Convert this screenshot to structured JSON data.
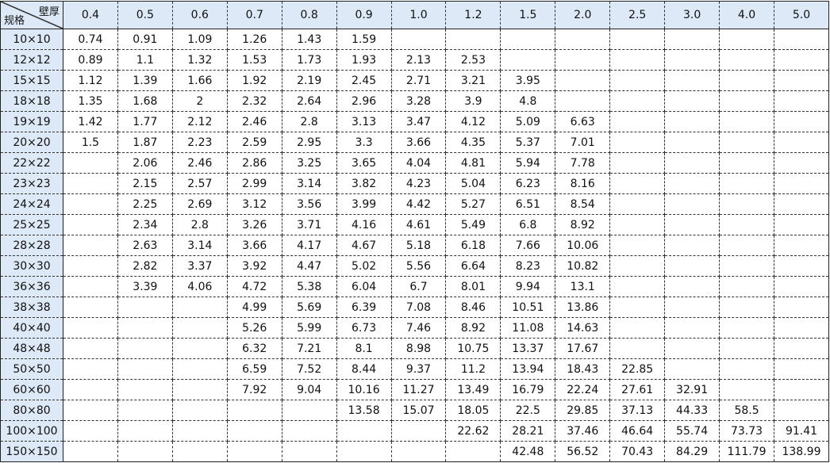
{
  "corner": {
    "top_label": "壁厚",
    "bottom_label": "规格"
  },
  "columns": [
    "0.4",
    "0.5",
    "0.6",
    "0.7",
    "0.8",
    "0.9",
    "1.0",
    "1.2",
    "1.5",
    "2.0",
    "2.5",
    "3.0",
    "4.0",
    "5.0"
  ],
  "rows": [
    {
      "spec": "10×10",
      "values": [
        "0.74",
        "0.91",
        "1.09",
        "1.26",
        "1.43",
        "1.59",
        "",
        "",
        "",
        "",
        "",
        "",
        "",
        ""
      ]
    },
    {
      "spec": "12×12",
      "values": [
        "0.89",
        "1.1",
        "1.32",
        "1.53",
        "1.73",
        "1.93",
        "2.13",
        "2.53",
        "",
        "",
        "",
        "",
        "",
        ""
      ]
    },
    {
      "spec": "15×15",
      "values": [
        "1.12",
        "1.39",
        "1.66",
        "1.92",
        "2.19",
        "2.45",
        "2.71",
        "3.21",
        "3.95",
        "",
        "",
        "",
        "",
        ""
      ]
    },
    {
      "spec": "18×18",
      "values": [
        "1.35",
        "1.68",
        "2",
        "2.32",
        "2.64",
        "2.96",
        "3.28",
        "3.9",
        "4.8",
        "",
        "",
        "",
        "",
        ""
      ]
    },
    {
      "spec": "19×19",
      "values": [
        "1.42",
        "1.77",
        "2.12",
        "2.46",
        "2.8",
        "3.13",
        "3.47",
        "4.12",
        "5.09",
        "6.63",
        "",
        "",
        "",
        ""
      ]
    },
    {
      "spec": "20×20",
      "values": [
        "1.5",
        "1.87",
        "2.23",
        "2.59",
        "2.95",
        "3.3",
        "3.66",
        "4.35",
        "5.37",
        "7.01",
        "",
        "",
        "",
        ""
      ]
    },
    {
      "spec": "22×22",
      "values": [
        "",
        "2.06",
        "2.46",
        "2.86",
        "3.25",
        "3.65",
        "4.04",
        "4.81",
        "5.94",
        "7.78",
        "",
        "",
        "",
        ""
      ]
    },
    {
      "spec": "23×23",
      "values": [
        "",
        "2.15",
        "2.57",
        "2.99",
        "3.14",
        "3.82",
        "4.23",
        "5.04",
        "6.23",
        "8.16",
        "",
        "",
        "",
        ""
      ]
    },
    {
      "spec": "24×24",
      "values": [
        "",
        "2.25",
        "2.69",
        "3.12",
        "3.56",
        "3.99",
        "4.42",
        "5.27",
        "6.51",
        "8.54",
        "",
        "",
        "",
        ""
      ]
    },
    {
      "spec": "25×25",
      "values": [
        "",
        "2.34",
        "2.8",
        "3.26",
        "3.71",
        "4.16",
        "4.61",
        "5.49",
        "6.8",
        "8.92",
        "",
        "",
        "",
        ""
      ]
    },
    {
      "spec": "28×28",
      "values": [
        "",
        "2.63",
        "3.14",
        "3.66",
        "4.17",
        "4.67",
        "5.18",
        "6.18",
        "7.66",
        "10.06",
        "",
        "",
        "",
        ""
      ]
    },
    {
      "spec": "30×30",
      "values": [
        "",
        "2.82",
        "3.37",
        "3.92",
        "4.47",
        "5.02",
        "5.56",
        "6.64",
        "8.23",
        "10.82",
        "",
        "",
        "",
        ""
      ]
    },
    {
      "spec": "36×36",
      "values": [
        "",
        "3.39",
        "4.06",
        "4.72",
        "5.38",
        "6.04",
        "6.7",
        "8.01",
        "9.94",
        "13.1",
        "",
        "",
        "",
        ""
      ]
    },
    {
      "spec": "38×38",
      "values": [
        "",
        "",
        "",
        "4.99",
        "5.69",
        "6.39",
        "7.08",
        "8.46",
        "10.51",
        "13.86",
        "",
        "",
        "",
        ""
      ]
    },
    {
      "spec": "40×40",
      "values": [
        "",
        "",
        "",
        "5.26",
        "5.99",
        "6.73",
        "7.46",
        "8.92",
        "11.08",
        "14.63",
        "",
        "",
        "",
        ""
      ]
    },
    {
      "spec": "48×48",
      "values": [
        "",
        "",
        "",
        "6.32",
        "7.21",
        "8.1",
        "8.98",
        "10.75",
        "13.37",
        "17.67",
        "",
        "",
        "",
        ""
      ]
    },
    {
      "spec": "50×50",
      "values": [
        "",
        "",
        "",
        "6.59",
        "7.52",
        "8.44",
        "9.37",
        "11.2",
        "13.94",
        "18.43",
        "22.85",
        "",
        "",
        ""
      ]
    },
    {
      "spec": "60×60",
      "values": [
        "",
        "",
        "",
        "7.92",
        "9.04",
        "10.16",
        "11.27",
        "13.49",
        "16.79",
        "22.24",
        "27.61",
        "32.91",
        "",
        ""
      ]
    },
    {
      "spec": "80×80",
      "values": [
        "",
        "",
        "",
        "",
        "",
        "13.58",
        "15.07",
        "18.05",
        "22.5",
        "29.85",
        "37.13",
        "44.33",
        "58.5",
        ""
      ]
    },
    {
      "spec": "100×100",
      "values": [
        "",
        "",
        "",
        "",
        "",
        "",
        "",
        "22.62",
        "28.21",
        "37.46",
        "46.64",
        "55.74",
        "73.73",
        "91.41"
      ]
    },
    {
      "spec": "150×150",
      "values": [
        "",
        "",
        "",
        "",
        "",
        "",
        "",
        "",
        "42.48",
        "56.52",
        "70.43",
        "84.29",
        "111.79",
        "138.99"
      ]
    }
  ],
  "colors": {
    "header_bg": "#dde9f6",
    "border": "#333333"
  }
}
